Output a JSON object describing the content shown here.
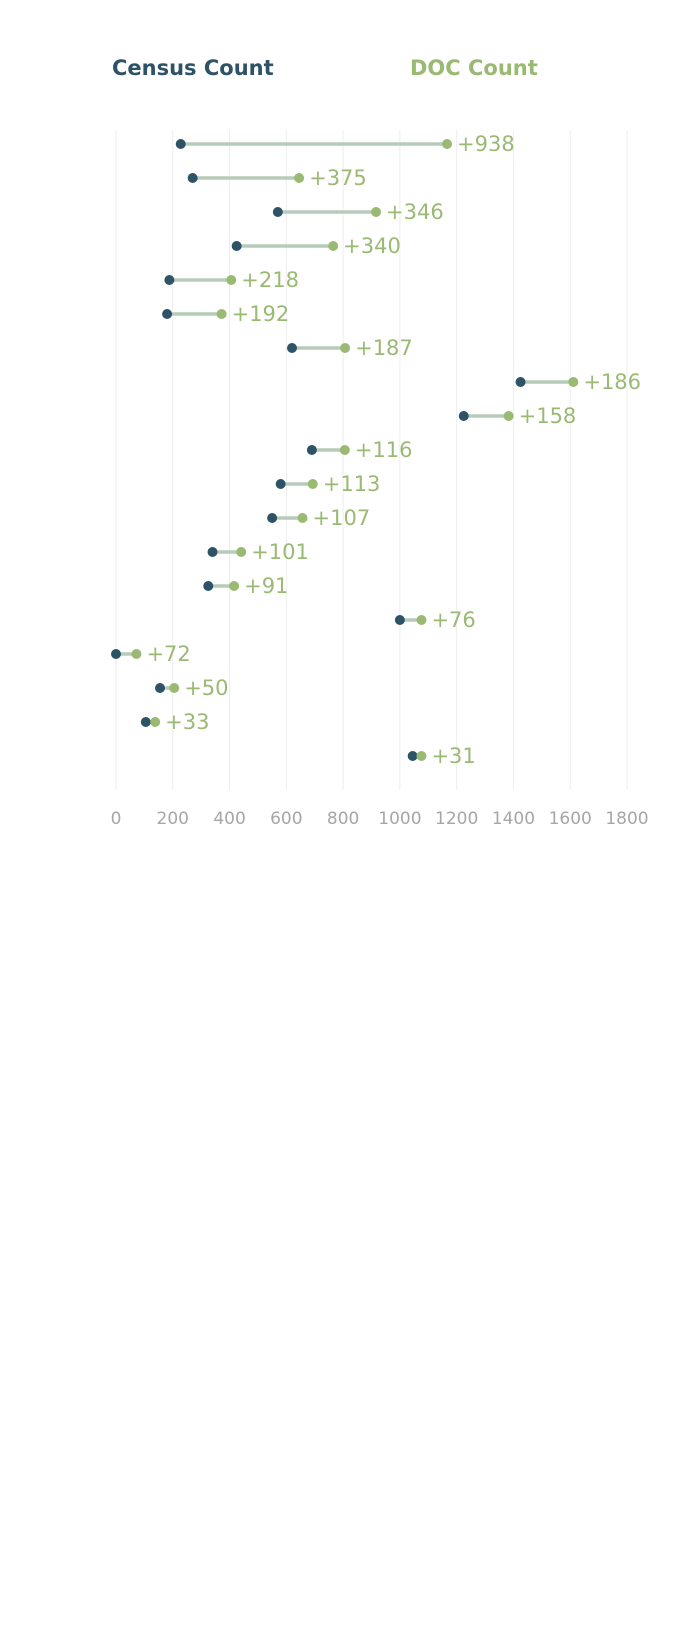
{
  "colors": {
    "census": "#2e5266",
    "doc": "#9ab973",
    "connector": "#b6cbb9",
    "grid": "#eeeeee",
    "tick_text": "#a6a6a6"
  },
  "legend": {
    "census_label": "Census Count",
    "doc_label": "DOC Count"
  },
  "chart_data": {
    "type": "dumbbell",
    "title": "",
    "xlabel": "",
    "ylabel": "",
    "xlim": [
      0,
      1800
    ],
    "x_ticks": [
      0,
      200,
      400,
      600,
      800,
      1000,
      1200,
      1400,
      1600,
      1800
    ],
    "grid": "vertical",
    "legend": "top",
    "series": [
      {
        "name": "Census Count",
        "key": "census"
      },
      {
        "name": "DOC Count",
        "key": "doc"
      }
    ],
    "rows": [
      {
        "census": 228,
        "doc": 1166,
        "label": "+938"
      },
      {
        "census": 270,
        "doc": 645,
        "label": "+375"
      },
      {
        "census": 570,
        "doc": 916,
        "label": "+346"
      },
      {
        "census": 425,
        "doc": 765,
        "label": "+340"
      },
      {
        "census": 188,
        "doc": 406,
        "label": "+218"
      },
      {
        "census": 180,
        "doc": 372,
        "label": "+192"
      },
      {
        "census": 620,
        "doc": 807,
        "label": "+187"
      },
      {
        "census": 1425,
        "doc": 1611,
        "label": "+186"
      },
      {
        "census": 1225,
        "doc": 1383,
        "label": "+158"
      },
      {
        "census": 690,
        "doc": 806,
        "label": "+116"
      },
      {
        "census": 580,
        "doc": 693,
        "label": "+113"
      },
      {
        "census": 550,
        "doc": 657,
        "label": "+107"
      },
      {
        "census": 340,
        "doc": 441,
        "label": "+101"
      },
      {
        "census": 325,
        "doc": 416,
        "label": "+91"
      },
      {
        "census": 1000,
        "doc": 1076,
        "label": "+76"
      },
      {
        "census": 0,
        "doc": 72,
        "label": "+72"
      },
      {
        "census": 155,
        "doc": 205,
        "label": "+50"
      },
      {
        "census": 105,
        "doc": 138,
        "label": "+33"
      },
      {
        "census": 1045,
        "doc": 1076,
        "label": "+31"
      }
    ]
  }
}
